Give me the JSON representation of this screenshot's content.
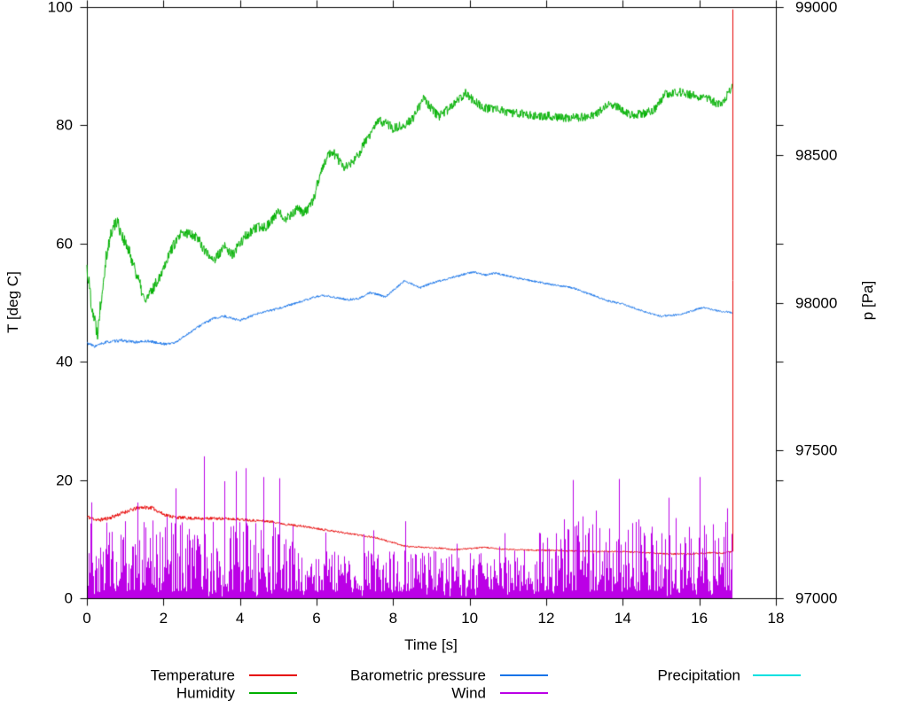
{
  "chart_data": {
    "type": "line",
    "title": "",
    "xlabel": "Time [s]",
    "ylabel": "T [deg C]",
    "y2label": "p [Pa]",
    "xlim": [
      0,
      18
    ],
    "ylim": [
      0,
      100
    ],
    "y2lim": [
      97000,
      99000
    ],
    "x_tick_labels": [
      "0",
      "2",
      "4",
      "6",
      "8",
      "10",
      "12",
      "14",
      "16",
      "18"
    ],
    "x_tick_values": [
      0,
      2,
      4,
      6,
      8,
      10,
      12,
      14,
      16,
      18
    ],
    "y_tick_labels": [
      "0",
      "20",
      "40",
      "60",
      "80",
      "100"
    ],
    "y_tick_values": [
      0,
      20,
      40,
      60,
      80,
      100
    ],
    "y2_tick_labels": [
      "97000",
      "97500",
      "98000",
      "98500",
      "99000"
    ],
    "y2_tick_values": [
      97000,
      97500,
      98000,
      98500,
      99000
    ],
    "grid": false,
    "legend_position": "bottom",
    "data_end_time": 16.86,
    "series": [
      {
        "name": "Temperature",
        "color": "#e60000",
        "axis": "y1",
        "keypoints": [
          [
            0,
            13.8
          ],
          [
            0.3,
            13.2
          ],
          [
            0.6,
            13.6
          ],
          [
            1.0,
            14.6
          ],
          [
            1.4,
            15.4
          ],
          [
            1.7,
            15.3
          ],
          [
            2.0,
            14.2
          ],
          [
            2.3,
            13.7
          ],
          [
            2.8,
            13.5
          ],
          [
            3.3,
            13.5
          ],
          [
            3.8,
            13.4
          ],
          [
            4.3,
            13.2
          ],
          [
            4.9,
            12.9
          ],
          [
            5.2,
            12.5
          ],
          [
            5.6,
            12.2
          ],
          [
            6.0,
            11.8
          ],
          [
            6.5,
            11.3
          ],
          [
            7.0,
            10.8
          ],
          [
            7.5,
            10.3
          ],
          [
            8.0,
            9.4
          ],
          [
            8.3,
            8.8
          ],
          [
            8.8,
            8.6
          ],
          [
            9.2,
            8.5
          ],
          [
            9.6,
            8.2
          ],
          [
            10.0,
            8.4
          ],
          [
            10.4,
            8.6
          ],
          [
            10.8,
            8.3
          ],
          [
            11.3,
            8.2
          ],
          [
            12.0,
            8.1
          ],
          [
            12.7,
            8.0
          ],
          [
            13.4,
            7.9
          ],
          [
            14.0,
            7.9
          ],
          [
            14.6,
            7.7
          ],
          [
            15.2,
            7.5
          ],
          [
            15.8,
            7.5
          ],
          [
            16.3,
            7.7
          ],
          [
            16.6,
            7.6
          ],
          [
            16.86,
            7.9
          ]
        ],
        "noise_profile": [
          [
            0,
            0.35
          ],
          [
            2,
            0.3
          ],
          [
            5,
            0.2
          ],
          [
            9,
            0.12
          ],
          [
            16.86,
            0.12
          ]
        ],
        "end_spike": {
          "t": 16.86,
          "to": 99.6
        }
      },
      {
        "name": "Humidity",
        "color": "#00b000",
        "axis": "y1",
        "keypoints": [
          [
            0,
            56
          ],
          [
            0.12,
            50
          ],
          [
            0.27,
            44.8
          ],
          [
            0.5,
            58
          ],
          [
            0.65,
            62
          ],
          [
            0.78,
            64
          ],
          [
            1.0,
            60
          ],
          [
            1.2,
            57
          ],
          [
            1.51,
            50.2
          ],
          [
            1.7,
            52
          ],
          [
            1.9,
            54.5
          ],
          [
            2.2,
            59
          ],
          [
            2.45,
            61.5
          ],
          [
            2.7,
            61.8
          ],
          [
            2.9,
            61
          ],
          [
            3.1,
            58.5
          ],
          [
            3.35,
            57.3
          ],
          [
            3.6,
            59.5
          ],
          [
            3.8,
            58
          ],
          [
            4.1,
            61
          ],
          [
            4.4,
            62.5
          ],
          [
            4.7,
            63
          ],
          [
            5.0,
            65.3
          ],
          [
            5.2,
            64.3
          ],
          [
            5.5,
            65.8
          ],
          [
            5.7,
            65.2
          ],
          [
            5.9,
            67
          ],
          [
            6.1,
            72
          ],
          [
            6.35,
            75.5
          ],
          [
            6.5,
            75
          ],
          [
            6.7,
            72.8
          ],
          [
            7.0,
            74
          ],
          [
            7.3,
            77.5
          ],
          [
            7.62,
            80.7
          ],
          [
            7.8,
            80.5
          ],
          [
            8.0,
            79.5
          ],
          [
            8.2,
            79.8
          ],
          [
            8.5,
            81
          ],
          [
            8.8,
            84.5
          ],
          [
            9.0,
            82.8
          ],
          [
            9.2,
            81.5
          ],
          [
            9.5,
            83
          ],
          [
            9.89,
            85.5
          ],
          [
            10.1,
            84.2
          ],
          [
            10.4,
            83
          ],
          [
            10.8,
            82.5
          ],
          [
            11.2,
            82
          ],
          [
            11.6,
            81.8
          ],
          [
            12.0,
            81.6
          ],
          [
            12.5,
            81.3
          ],
          [
            13.0,
            81.4
          ],
          [
            13.3,
            81.8
          ],
          [
            13.6,
            83.4
          ],
          [
            13.9,
            83.0
          ],
          [
            14.2,
            81.8
          ],
          [
            14.5,
            81.9
          ],
          [
            14.8,
            82.5
          ],
          [
            15.1,
            85.2
          ],
          [
            15.5,
            85.6
          ],
          [
            15.9,
            85.0
          ],
          [
            16.2,
            84.6
          ],
          [
            16.45,
            83.7
          ],
          [
            16.6,
            83.9
          ],
          [
            16.86,
            86.4
          ]
        ],
        "noise_profile": [
          [
            0,
            1.6
          ],
          [
            0.9,
            1.2
          ],
          [
            2,
            0.9
          ],
          [
            6,
            0.85
          ],
          [
            16.86,
            0.7
          ]
        ]
      },
      {
        "name": "Barometric pressure",
        "color": "#1874e8",
        "axis": "y2",
        "keypoints": [
          [
            0,
            97864
          ],
          [
            0.2,
            97852
          ],
          [
            0.5,
            97866
          ],
          [
            0.9,
            97872
          ],
          [
            1.3,
            97866
          ],
          [
            1.6,
            97870
          ],
          [
            2.0,
            97860
          ],
          [
            2.3,
            97864
          ],
          [
            2.7,
            97900
          ],
          [
            3.0,
            97926
          ],
          [
            3.3,
            97946
          ],
          [
            3.6,
            97954
          ],
          [
            4.0,
            97940
          ],
          [
            4.5,
            97964
          ],
          [
            5.0,
            97980
          ],
          [
            5.5,
            98000
          ],
          [
            6.1,
            98024
          ],
          [
            6.4,
            98020
          ],
          [
            6.8,
            98010
          ],
          [
            7.1,
            98014
          ],
          [
            7.4,
            98034
          ],
          [
            7.8,
            98020
          ],
          [
            8.3,
            98074
          ],
          [
            8.7,
            98050
          ],
          [
            9.0,
            98066
          ],
          [
            9.8,
            98094
          ],
          [
            10.1,
            98104
          ],
          [
            10.4,
            98094
          ],
          [
            10.7,
            98100
          ],
          [
            11.2,
            98084
          ],
          [
            11.7,
            98072
          ],
          [
            12.2,
            98060
          ],
          [
            12.7,
            98050
          ],
          [
            13.2,
            98026
          ],
          [
            13.6,
            98006
          ],
          [
            14.0,
            97996
          ],
          [
            14.5,
            97972
          ],
          [
            15.0,
            97954
          ],
          [
            15.5,
            97960
          ],
          [
            16.1,
            97984
          ],
          [
            16.5,
            97972
          ],
          [
            16.86,
            97966
          ]
        ],
        "noise_profile": [
          [
            0,
            5
          ],
          [
            3,
            4
          ],
          [
            16.86,
            3
          ]
        ]
      },
      {
        "name": "Wind",
        "color": "#bb00e6",
        "axis": "y1",
        "style": "impulses",
        "regimes": [
          {
            "t0": 0,
            "t1": 5.45,
            "range": 12,
            "cap": 24
          },
          {
            "t0": 5.45,
            "t1": 11.6,
            "range": 7,
            "cap": 14.5
          },
          {
            "t0": 11.6,
            "t1": 16.86,
            "range": 12.5,
            "cap": 21
          }
        ],
        "notable_spikes": [
          [
            3.05,
            24
          ],
          [
            3.9,
            21.5
          ],
          [
            4.15,
            22
          ],
          [
            4.6,
            20.5
          ],
          [
            5.02,
            20.3
          ],
          [
            12.7,
            20
          ],
          [
            15.2,
            17
          ],
          [
            16.0,
            20.5
          ]
        ]
      },
      {
        "name": "Precipitation",
        "color": "#00e0e0",
        "axis": "y1",
        "keypoints": [
          [
            0,
            0
          ],
          [
            16.86,
            0
          ]
        ],
        "plot_line_visible": false
      }
    ]
  },
  "legend": {
    "entries": [
      "Temperature",
      "Humidity",
      "Barometric pressure",
      "Wind",
      "Precipitation"
    ]
  }
}
